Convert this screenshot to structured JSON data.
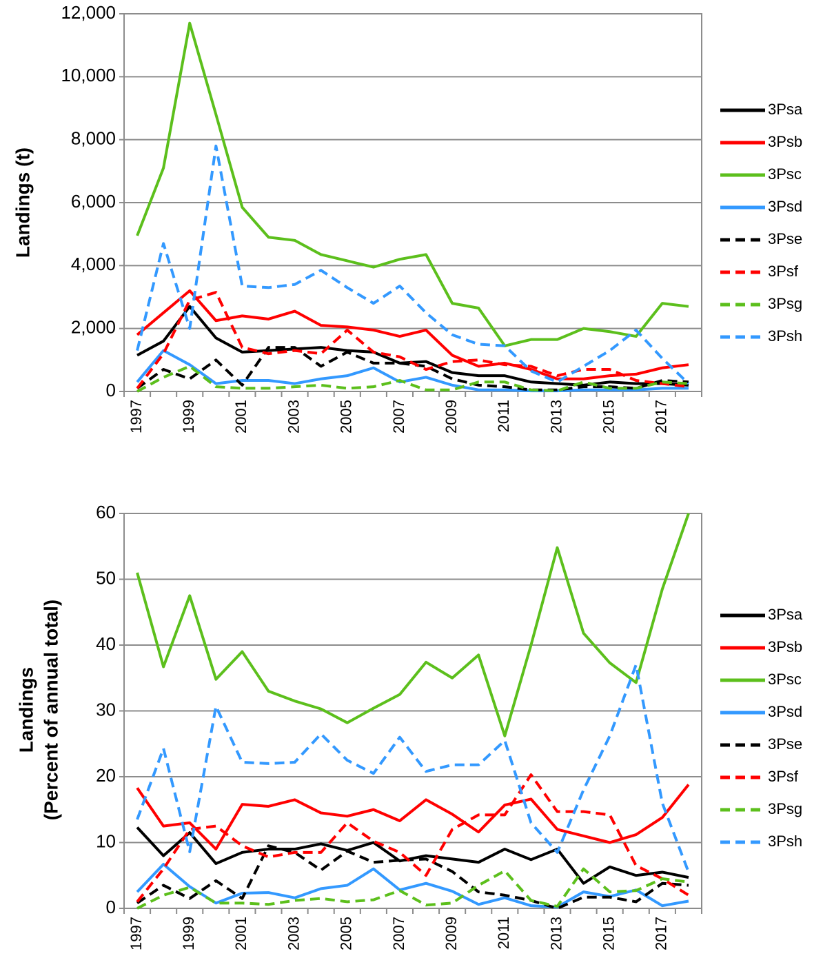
{
  "chart_data": [
    {
      "type": "line",
      "ylabel": [
        "Landings (t)"
      ],
      "categories": [
        "1997",
        null,
        "1999",
        null,
        "2001",
        null,
        "2003",
        null,
        "2005",
        null,
        "2007",
        null,
        "2009",
        null,
        "2011",
        null,
        "2013",
        null,
        "2015",
        null,
        "2017",
        null
      ],
      "ylim": [
        0,
        12000
      ],
      "yticks": [
        0,
        {
          "value": 2000,
          "label": "2,000"
        },
        {
          "value": 4000,
          "label": "4,000"
        },
        {
          "value": 6000,
          "label": "6,000"
        },
        {
          "value": 8000,
          "label": "8,000"
        },
        {
          "value": 10000,
          "label": "10,000"
        },
        {
          "value": 12000,
          "label": "12,000"
        }
      ],
      "grid": true,
      "legend": "right",
      "series": [
        {
          "name": "3Psa",
          "color": "#000000",
          "style": "solid",
          "values": [
            1150,
            1600,
            2700,
            1700,
            1250,
            1300,
            1350,
            1400,
            1300,
            1250,
            900,
            950,
            600,
            500,
            500,
            300,
            250,
            200,
            300,
            250,
            250,
            200
          ]
        },
        {
          "name": "3Psb",
          "color": "#ff0000",
          "style": "solid",
          "values": [
            1800,
            2500,
            3200,
            2250,
            2400,
            2300,
            2550,
            2100,
            2050,
            1950,
            1750,
            1950,
            1150,
            800,
            900,
            700,
            400,
            400,
            500,
            550,
            750,
            850
          ]
        },
        {
          "name": "3Psc",
          "color": "#5cbf1c",
          "style": "solid",
          "values": [
            4950,
            7100,
            11700,
            8800,
            5850,
            4900,
            4800,
            4350,
            4150,
            3950,
            4200,
            4350,
            2800,
            2650,
            1450,
            1650,
            1650,
            2000,
            1900,
            1750,
            2800,
            2700
          ]
        },
        {
          "name": "3Psd",
          "color": "#3399ff",
          "style": "solid",
          "values": [
            300,
            1300,
            850,
            250,
            350,
            350,
            250,
            400,
            500,
            750,
            300,
            450,
            200,
            50,
            50,
            20,
            20,
            50,
            50,
            50,
            100,
            100
          ]
        },
        {
          "name": "3Pse",
          "color": "#000000",
          "style": "dashed",
          "values": [
            100,
            700,
            400,
            1000,
            200,
            1400,
            1400,
            800,
            1250,
            900,
            900,
            800,
            400,
            200,
            150,
            50,
            50,
            150,
            150,
            100,
            350,
            300
          ]
        },
        {
          "name": "3Psf",
          "color": "#ff0000",
          "style": "dashed",
          "values": [
            100,
            1200,
            2900,
            3150,
            1400,
            1200,
            1300,
            1200,
            1950,
            1250,
            1100,
            700,
            950,
            1000,
            850,
            800,
            500,
            700,
            700,
            350,
            250,
            150
          ]
        },
        {
          "name": "3Psg",
          "color": "#5cbf1c",
          "style": "dashed",
          "values": [
            0,
            450,
            800,
            150,
            100,
            100,
            150,
            200,
            100,
            150,
            350,
            50,
            50,
            300,
            300,
            50,
            20,
            300,
            100,
            100,
            300,
            250
          ]
        },
        {
          "name": "3Psh",
          "color": "#3399ff",
          "style": "dashed",
          "values": [
            1300,
            4700,
            2000,
            7800,
            3350,
            3300,
            3400,
            3850,
            3300,
            2800,
            3350,
            2500,
            1800,
            1500,
            1450,
            650,
            300,
            800,
            1300,
            1950,
            1050,
            250
          ]
        }
      ]
    },
    {
      "type": "line",
      "ylabel": [
        "Landings",
        "(Percent of annual total)"
      ],
      "categories": [
        "1997",
        null,
        "1999",
        null,
        "2001",
        null,
        "2003",
        null,
        "2005",
        null,
        "2007",
        null,
        "2009",
        null,
        "2011",
        null,
        "2013",
        null,
        "2015",
        null,
        "2017",
        null
      ],
      "ylim": [
        0,
        60
      ],
      "yticks": [
        0,
        10,
        20,
        30,
        40,
        50,
        60
      ],
      "grid": true,
      "legend": "right",
      "series": [
        {
          "name": "3Psa",
          "color": "#000000",
          "style": "solid",
          "values": [
            12.3,
            8,
            11.5,
            6.8,
            8.5,
            9,
            9,
            9.8,
            8.8,
            10,
            7.2,
            8,
            7.5,
            7,
            9,
            7.4,
            9,
            3.8,
            6.3,
            5,
            5.5,
            4.7
          ]
        },
        {
          "name": "3Psb",
          "color": "#ff0000",
          "style": "solid",
          "values": [
            18.3,
            12.5,
            13,
            9,
            15.8,
            15.5,
            16.5,
            14.5,
            14,
            15,
            13.3,
            16.5,
            14.3,
            11.6,
            15.7,
            16.6,
            12,
            11,
            10,
            11.2,
            13.8,
            18.8
          ]
        },
        {
          "name": "3Psc",
          "color": "#5cbf1c",
          "style": "solid",
          "values": [
            51,
            36.7,
            47.5,
            34.8,
            39,
            33,
            31.5,
            30.3,
            28.2,
            30.4,
            32.5,
            37.4,
            35,
            38.5,
            26.2,
            40,
            54.8,
            41.8,
            37.3,
            34.3,
            48.5,
            60
          ]
        },
        {
          "name": "3Psd",
          "color": "#3399ff",
          "style": "solid",
          "values": [
            2.5,
            6.7,
            3.3,
            0.8,
            2.3,
            2.4,
            1.6,
            3,
            3.5,
            6,
            2.8,
            3.8,
            2.6,
            0.6,
            1.6,
            0.4,
            0.2,
            2.5,
            1.8,
            2.8,
            0.4,
            1.1
          ]
        },
        {
          "name": "3Pse",
          "color": "#000000",
          "style": "dashed",
          "values": [
            0.8,
            3.5,
            1.5,
            4.2,
            1.5,
            9.5,
            8.5,
            5.8,
            8.7,
            7,
            7.3,
            7.5,
            5.6,
            2.5,
            2,
            1.2,
            0,
            1.7,
            1.7,
            1,
            3.8,
            3.5
          ]
        },
        {
          "name": "3Psf",
          "color": "#ff0000",
          "style": "dashed",
          "values": [
            1,
            6,
            12,
            12.5,
            9.5,
            7.8,
            8.5,
            8.5,
            13,
            10.2,
            8.5,
            5,
            12,
            14.2,
            14.2,
            20.3,
            14.7,
            14.7,
            14.2,
            6.5,
            4.5,
            2
          ]
        },
        {
          "name": "3Psg",
          "color": "#5cbf1c",
          "style": "dashed",
          "values": [
            0,
            2,
            3.2,
            0.8,
            0.8,
            0.6,
            1.2,
            1.5,
            1,
            1.3,
            2.7,
            0.5,
            0.8,
            3.5,
            5.7,
            1.2,
            0.3,
            6,
            2.5,
            2.7,
            4.5,
            4
          ]
        },
        {
          "name": "3Psh",
          "color": "#3399ff",
          "style": "dashed",
          "values": [
            13.5,
            24.3,
            8.6,
            30.7,
            22.2,
            22,
            22.2,
            26.5,
            22.5,
            20.5,
            26,
            20.8,
            21.8,
            21.8,
            25.5,
            13,
            8.5,
            18,
            26.2,
            37,
            16,
            5.5
          ]
        }
      ]
    }
  ]
}
